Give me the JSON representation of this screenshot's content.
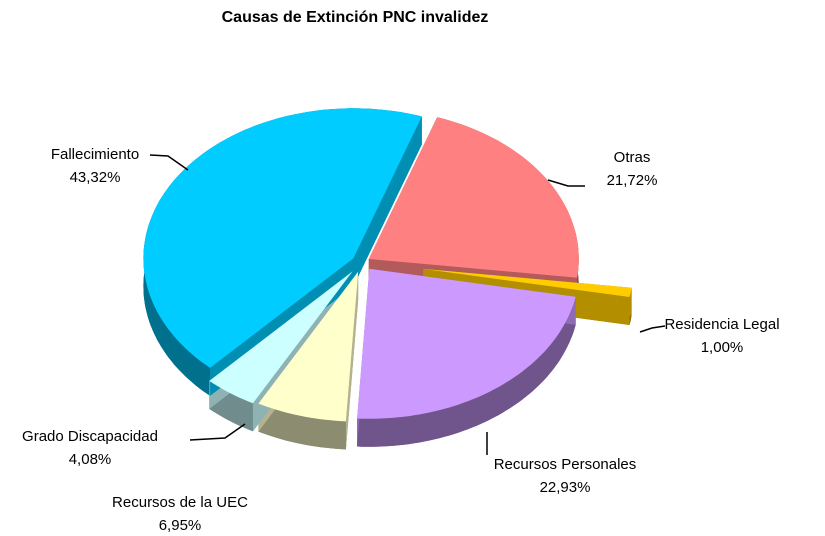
{
  "chart_data": {
    "type": "pie",
    "title": "Causas de Extinción PNC invalidez",
    "categories": [
      "Otras",
      "Residencia Legal",
      "Recursos Personales",
      "Recursos de la UEC",
      "Grado Discapacidad",
      "Fallecimiento"
    ],
    "values": [
      21.72,
      1.0,
      22.93,
      6.95,
      4.08,
      43.32
    ],
    "value_labels": [
      "21,72%",
      "1,00%",
      "22,93%",
      "6,95%",
      "4,08%",
      "43,32%"
    ],
    "colors": [
      "#FF8080",
      "#FFCC00",
      "#CC99FF",
      "#FFFFCC",
      "#CCFFFF",
      "#00CCFF"
    ]
  }
}
